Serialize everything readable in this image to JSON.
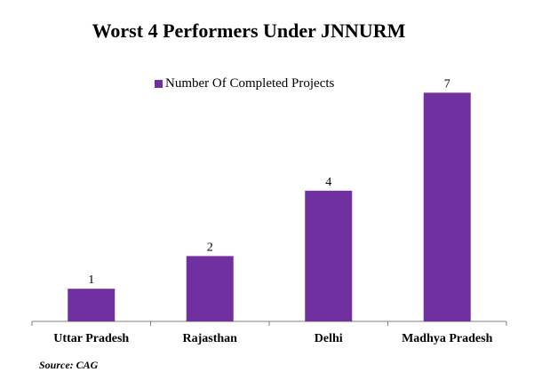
{
  "chart_data": {
    "type": "bar",
    "title": "Worst 4 Performers Under JNNURM",
    "xlabel": "",
    "ylabel": "",
    "categories": [
      "Uttar Pradesh",
      "Rajasthan",
      "Delhi",
      "Madhya Pradesh"
    ],
    "series": [
      {
        "name": "Number Of Completed Projects",
        "values": [
          1,
          2,
          4,
          7
        ]
      }
    ],
    "ylim": [
      0,
      7.5
    ],
    "grid": false,
    "legend_position": "top",
    "data_labels": true
  },
  "colors": {
    "bar": "#7030a0",
    "axis": "#808080"
  },
  "source": "Source: CAG"
}
